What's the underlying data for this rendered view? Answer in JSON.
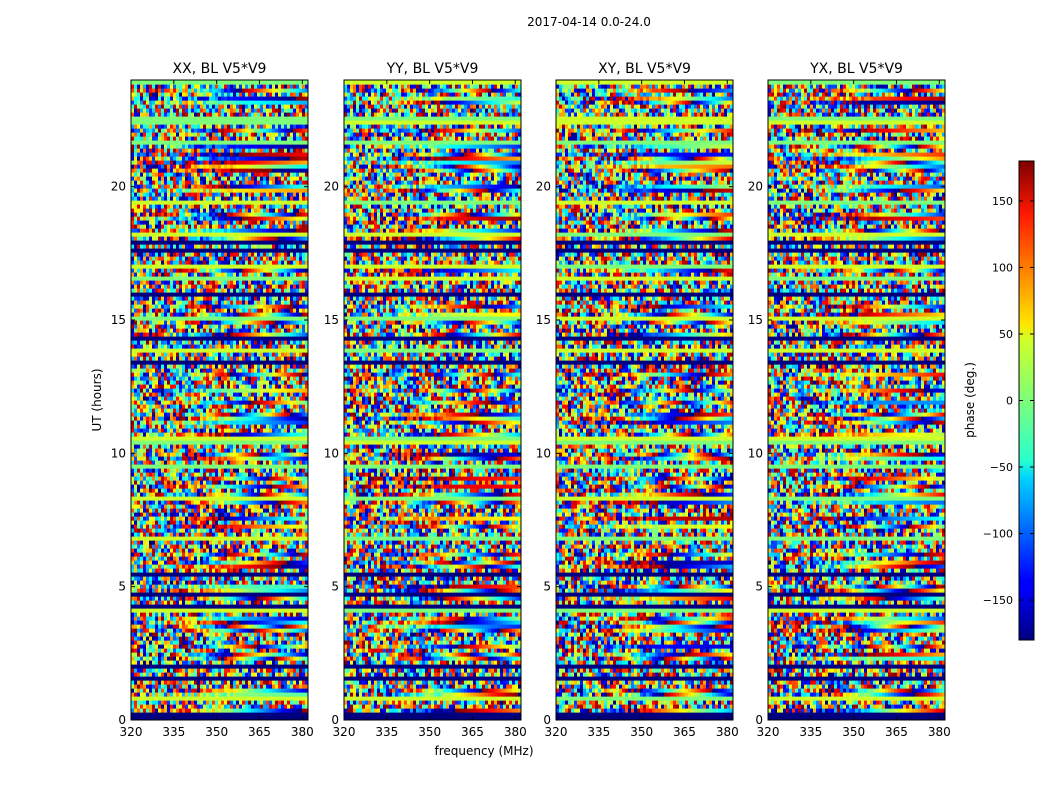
{
  "figure": {
    "suptitle": "2017-04-14 0.0-24.0",
    "ylabel": "UT (hours)",
    "xlabel": "frequency (MHz)"
  },
  "colorbar": {
    "label": "phase (deg.)",
    "ticks": [
      "150",
      "100",
      "50",
      "0",
      "−50",
      "−100",
      "−150"
    ],
    "tick_values": [
      150,
      100,
      50,
      0,
      -50,
      -100,
      -150
    ],
    "range": [
      -180,
      180
    ],
    "colormap": "jet"
  },
  "chart_data": {
    "type": "heatmap",
    "title": "2017-04-14 0.0-24.0",
    "xlabel": "frequency (MHz)",
    "ylabel": "UT (hours)",
    "xlim": [
      320,
      382
    ],
    "ylim": [
      0,
      24
    ],
    "x_ticks": [
      320,
      335,
      350,
      365,
      380
    ],
    "y_ticks": [
      0,
      5,
      10,
      15,
      20
    ],
    "value_label": "phase (deg.)",
    "value_range": [
      -180,
      180
    ],
    "panels": [
      {
        "title": "XX, BL V5*V9",
        "baseline": "V5*V9",
        "polarization": "XX",
        "show_xlabel": false
      },
      {
        "title": "YY, BL V5*V9",
        "baseline": "V5*V9",
        "polarization": "YY",
        "show_xlabel": true
      },
      {
        "title": "XY, BL V5*V9",
        "baseline": "V5*V9",
        "polarization": "XY",
        "show_xlabel": false
      },
      {
        "title": "YX, BL V5*V9",
        "baseline": "V5*V9",
        "polarization": "YX",
        "show_xlabel": false
      }
    ]
  }
}
